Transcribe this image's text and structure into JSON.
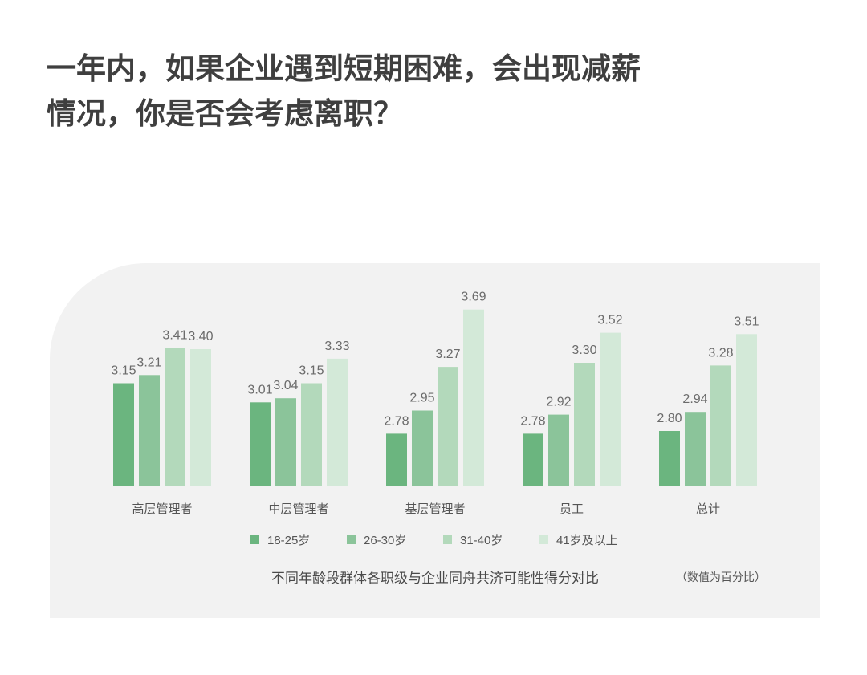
{
  "headline": {
    "line1": "一年内，如果企业遇到短期困难，会出现减薪",
    "line2": "情况，你是否会考虑离职？"
  },
  "chart_data": {
    "type": "bar",
    "categories": [
      "高层管理者",
      "中层管理者",
      "基层管理者",
      "员工",
      "总计"
    ],
    "series": [
      {
        "name": "18-25岁",
        "color": "#6bb57f",
        "values": [
          3.15,
          3.01,
          2.78,
          2.78,
          2.8
        ]
      },
      {
        "name": "26-30岁",
        "color": "#8bc49a",
        "values": [
          3.21,
          3.04,
          2.95,
          2.92,
          2.94
        ]
      },
      {
        "name": "31-40岁",
        "color": "#b3d9bb",
        "values": [
          3.41,
          3.15,
          3.27,
          3.3,
          3.28
        ]
      },
      {
        "name": "41岁及以上",
        "color": "#d3e9d8",
        "values": [
          3.4,
          3.33,
          3.69,
          3.52,
          3.51
        ]
      }
    ],
    "ylim": [
      2.4,
      3.7
    ],
    "value_format": "2 decimals",
    "grid": false,
    "legend": "bottom-center",
    "caption": "不同年龄段群体各职级与企业同舟共济可能性得分对比",
    "note": "（数值为百分比）"
  }
}
